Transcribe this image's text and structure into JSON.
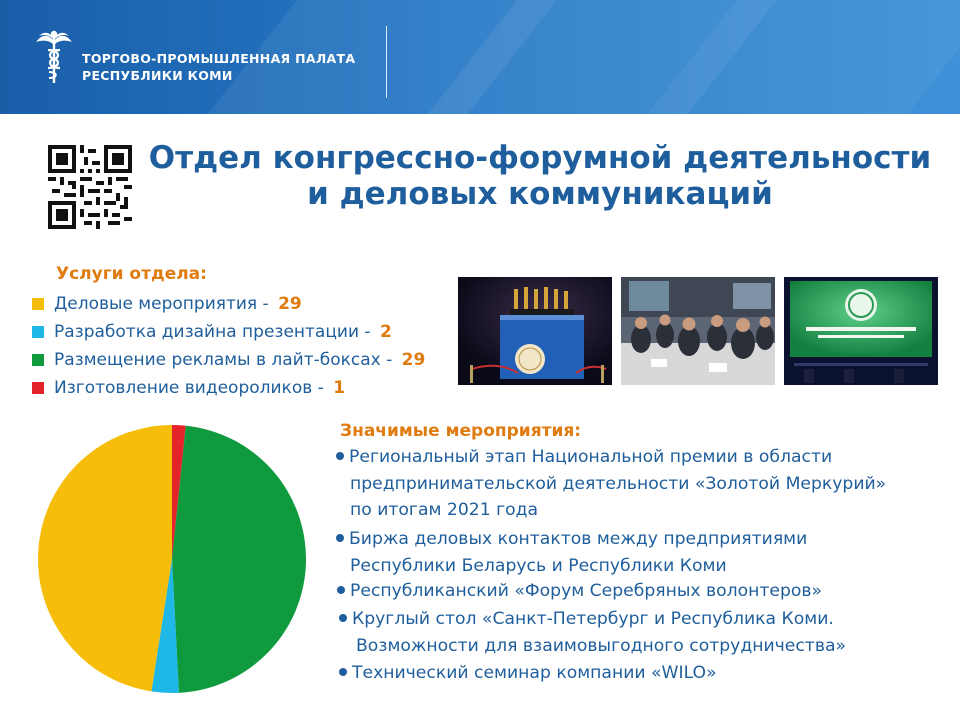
{
  "header": {
    "org_line1": "ТОРГОВО-ПРОМЫШЛЕННАЯ ПАЛАТА",
    "org_line2": "РЕСПУБЛИКИ КОМИ",
    "logo_icon": "hermes-caduceus-logo-icon",
    "gradient_colors": [
      "#1a5ea8",
      "#3f92d8"
    ]
  },
  "title": {
    "line1": "Отдел конгрессно-форумной деятельности",
    "line2": "и деловых коммуникаций"
  },
  "qr_icon": "qr-code-icon",
  "services": {
    "heading": "Услуги отдела:"
  },
  "photos": [
    {
      "name": "photo-golden-mercury-awards"
    },
    {
      "name": "photo-business-meeting-hall"
    },
    {
      "name": "photo-silver-volunteers-forum-screen"
    }
  ],
  "events": {
    "heading": "Значимые мероприятия:",
    "items": [
      {
        "lines": [
          "Региональный этап Национальной премии в области",
          "предпринимательской деятельности «Золотой Меркурий»",
          "по итогам 2021 года"
        ]
      },
      {
        "lines": [
          "Биржа деловых контактов между предприятиями",
          "Республики Беларусь и Республики Коми"
        ]
      },
      {
        "lines": [
          "Республиканский «Форум Серебряных волонтеров»"
        ]
      },
      {
        "lines": [
          "Круглый стол «Санкт-Петербург и Республика Коми.",
          "Возможности для взаимовыгодного сотрудничества»"
        ]
      },
      {
        "lines": [
          "Технический семинар компании «WILO»"
        ]
      }
    ]
  },
  "colors": {
    "title_blue": "#1f5e9c",
    "accent_orange": "#e07b10"
  },
  "chart_data": {
    "type": "pie",
    "title": "",
    "legend_position": "top-left",
    "series": [
      {
        "label": "Деловые мероприятия - ",
        "value": 29,
        "color": "#f7bd0b"
      },
      {
        "label": "Разработка дизайна презентации - ",
        "value": 2,
        "color": "#1eb7e6"
      },
      {
        "label": "Размещение рекламы в лайт-боксах - ",
        "value": 29,
        "color": "#0f9a3e"
      },
      {
        "label": "Изготовление видеороликов - ",
        "value": 1,
        "color": "#e3242b"
      }
    ],
    "draw_order": [
      3,
      2,
      1,
      0
    ]
  }
}
